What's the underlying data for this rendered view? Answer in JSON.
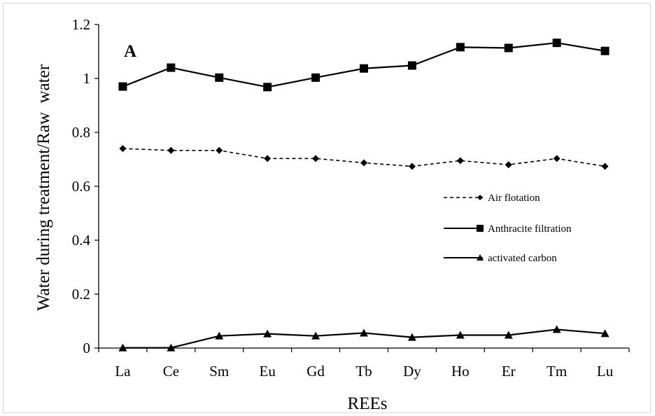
{
  "chart_data": {
    "type": "line",
    "panel_label": "A",
    "xlabel": "REEs",
    "ylabel": "Water during treatment/Raw  water",
    "categories": [
      "La",
      "Ce",
      "Sm",
      "Eu",
      "Gd",
      "Tb",
      "Dy",
      "Ho",
      "Er",
      "Tm",
      "Lu"
    ],
    "ylim": [
      0,
      1.2
    ],
    "yticks": [
      0,
      0.2,
      0.4,
      0.6,
      0.8,
      1,
      1.2
    ],
    "ytick_labels": [
      "0",
      "0.2",
      "0.4",
      "0.6",
      "0.8",
      "1",
      "1.2"
    ],
    "grid": false,
    "legend_position": "middle-right",
    "series": [
      {
        "name": "Air flotation",
        "marker": "diamond",
        "line": "dashed",
        "color": "#000000",
        "values": [
          0.74,
          0.733,
          0.733,
          0.703,
          0.703,
          0.687,
          0.674,
          0.695,
          0.68,
          0.703,
          0.674
        ]
      },
      {
        "name": "Anthracite filtration",
        "marker": "square",
        "line": "solid",
        "color": "#000000",
        "values": [
          0.97,
          1.04,
          1.003,
          0.968,
          1.003,
          1.037,
          1.048,
          1.116,
          1.113,
          1.132,
          1.102
        ]
      },
      {
        "name": "activated carbon",
        "marker": "triangle",
        "line": "solid",
        "color": "#000000",
        "values": [
          0.001,
          0.001,
          0.045,
          0.053,
          0.045,
          0.056,
          0.04,
          0.048,
          0.048,
          0.069,
          0.054
        ]
      }
    ]
  }
}
